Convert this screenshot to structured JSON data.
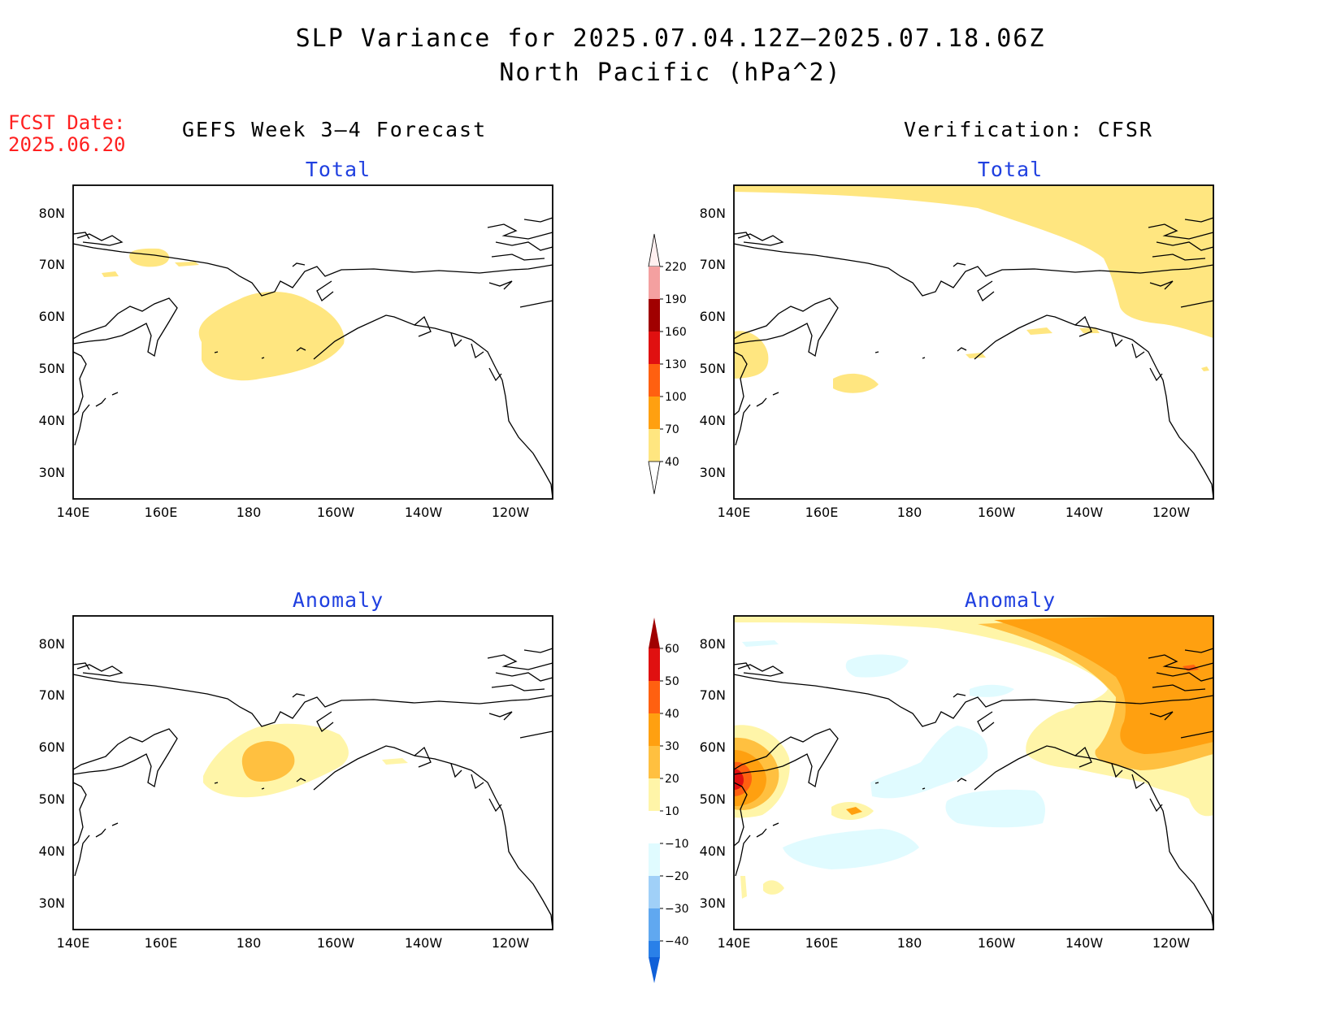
{
  "header": {
    "title_line1": "SLP Variance for 2025.07.04.12Z–2025.07.18.06Z",
    "title_line2": "North Pacific (hPa^2)"
  },
  "fcst": {
    "label": "FCST Date:",
    "date": "2025.06.20"
  },
  "columns": {
    "left": "GEFS Week 3–4 Forecast",
    "right": "Verification: CFSR"
  },
  "panels": {
    "total_label": "Total",
    "anomaly_label": "Anomaly"
  },
  "axes": {
    "lat_labels": [
      "80N",
      "70N",
      "60N",
      "50N",
      "40N",
      "30N"
    ],
    "lon_labels": [
      "140E",
      "160E",
      "180",
      "160W",
      "140W",
      "120W"
    ]
  },
  "colorbars": {
    "total": {
      "labels": [
        "220",
        "190",
        "160",
        "130",
        "100",
        "70",
        "40"
      ],
      "colors": [
        "#fde0e0",
        "#f4a0a0",
        "#a00000",
        "#e01010",
        "#ff6010",
        "#ffa010",
        "#ffe680"
      ]
    },
    "anomaly": {
      "labels": [
        "60",
        "50",
        "40",
        "30",
        "20",
        "10",
        "−10",
        "−20",
        "−30",
        "−40"
      ],
      "colors": [
        "#a00000",
        "#e01010",
        "#ff6010",
        "#ffa010",
        "#ffc040",
        "#fff5a8",
        "#ffffff",
        "#e0fbff",
        "#a0d0f8",
        "#60a8f0",
        "#2a80e8",
        "#1060d8"
      ]
    }
  },
  "palette": {
    "yellow_light": "#fff5a8",
    "yellow": "#ffe680",
    "orange_light": "#ffc040",
    "orange": "#ffa010",
    "orange_dark": "#ff6010",
    "red": "#e01010",
    "cyan_light": "#e0fbff"
  }
}
